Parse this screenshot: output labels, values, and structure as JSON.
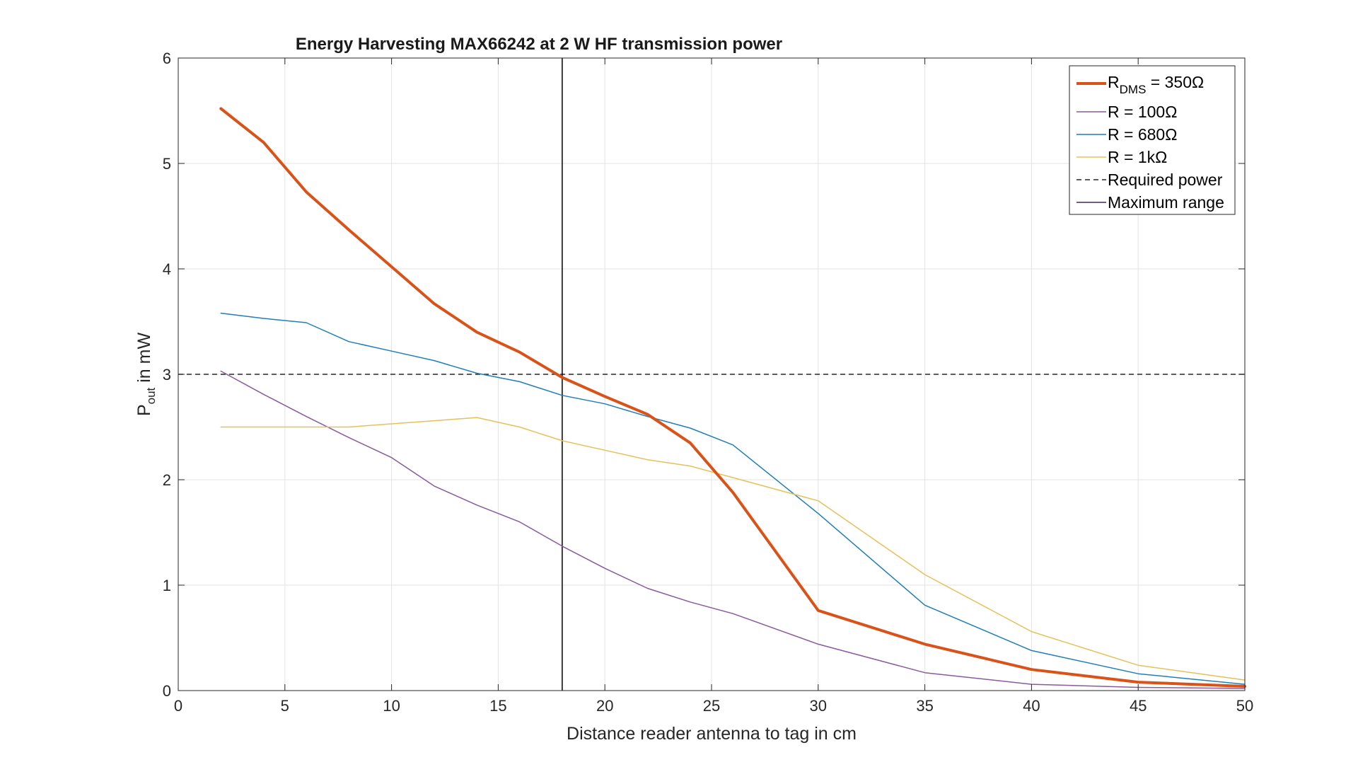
{
  "chart_data": {
    "type": "line",
    "title": "Energy Harvesting MAX66242 at 2 W HF transmission power",
    "xlabel": "Distance reader antenna to tag in cm",
    "ylabel_main": "P",
    "ylabel_sub": "out",
    "ylabel_rest": " in mW",
    "xlim": [
      0,
      50
    ],
    "ylim": [
      0,
      6
    ],
    "x_ticks": [
      "0",
      "5",
      "10",
      "15",
      "20",
      "25",
      "30",
      "35",
      "40",
      "45",
      "50"
    ],
    "y_ticks": [
      "0",
      "1",
      "2",
      "3",
      "4",
      "5",
      "6"
    ],
    "grid": true,
    "legend_position": "top-right",
    "series": [
      {
        "name_main": "R",
        "name_sub": "DMS",
        "name_rest": " = 350Ω",
        "color": "#D95319",
        "width": "thick",
        "x": [
          2,
          4,
          6,
          8,
          10,
          12,
          14,
          16,
          18,
          20,
          22,
          24,
          26,
          30,
          35,
          40,
          45,
          50
        ],
        "y": [
          5.52,
          5.2,
          4.73,
          4.37,
          4.02,
          3.67,
          3.4,
          3.21,
          2.97,
          2.79,
          2.62,
          2.35,
          1.88,
          0.76,
          0.44,
          0.2,
          0.08,
          0.04
        ]
      },
      {
        "name": "R = 100Ω",
        "color": "#8A5A9C",
        "width": "thin",
        "x": [
          2,
          4,
          6,
          8,
          10,
          12,
          14,
          16,
          18,
          20,
          22,
          24,
          26,
          30,
          35,
          40,
          45,
          50
        ],
        "y": [
          3.03,
          2.81,
          2.6,
          2.4,
          2.21,
          1.94,
          1.76,
          1.6,
          1.37,
          1.16,
          0.97,
          0.84,
          0.73,
          0.44,
          0.17,
          0.06,
          0.03,
          0.02
        ]
      },
      {
        "name": "R = 680Ω",
        "color": "#1F7FB5",
        "width": "thin",
        "x": [
          2,
          4,
          6,
          8,
          10,
          12,
          14,
          16,
          18,
          20,
          22,
          24,
          26,
          30,
          35,
          40,
          45,
          50
        ],
        "y": [
          3.58,
          3.53,
          3.49,
          3.31,
          3.22,
          3.13,
          3.01,
          2.93,
          2.8,
          2.72,
          2.6,
          2.49,
          2.33,
          1.68,
          0.81,
          0.38,
          0.16,
          0.06
        ]
      },
      {
        "name": "R = 1kΩ",
        "color": "#E5C15A",
        "width": "thin",
        "x": [
          2,
          4,
          6,
          8,
          10,
          12,
          14,
          16,
          18,
          20,
          22,
          24,
          26,
          30,
          35,
          40,
          45,
          50
        ],
        "y": [
          2.5,
          2.5,
          2.5,
          2.5,
          2.53,
          2.56,
          2.59,
          2.5,
          2.37,
          2.28,
          2.19,
          2.13,
          2.02,
          1.8,
          1.1,
          0.56,
          0.24,
          0.1
        ]
      }
    ],
    "required_power": {
      "name": "Required power",
      "y": 3,
      "color": "#262626",
      "dash": "dashed"
    },
    "maximum_range": {
      "name": "Maximum range",
      "x": 18,
      "color": "#000000",
      "legend_color": "#3b2a55"
    }
  }
}
